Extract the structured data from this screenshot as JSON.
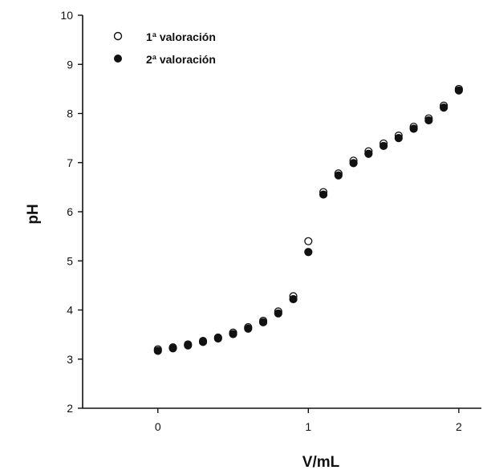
{
  "chart_data": {
    "type": "scatter",
    "title": "",
    "xlabel": "V/mL",
    "ylabel": "pH",
    "xlim": [
      -0.5,
      2.15
    ],
    "ylim": [
      2,
      10
    ],
    "xticks": [
      0,
      1,
      2
    ],
    "yticks": [
      2,
      3,
      4,
      5,
      6,
      7,
      8,
      9,
      10
    ],
    "grid": false,
    "legend": "top-left",
    "series": [
      {
        "name": "1ª valoración",
        "marker": "open-circle",
        "color": "#111111",
        "x": [
          0.0,
          0.1,
          0.2,
          0.3,
          0.4,
          0.5,
          0.6,
          0.7,
          0.8,
          0.9,
          1.0,
          1.1,
          1.2,
          1.3,
          1.4,
          1.5,
          1.6,
          1.7,
          1.8,
          1.9,
          2.0
        ],
        "y": [
          3.2,
          3.24,
          3.3,
          3.37,
          3.44,
          3.54,
          3.65,
          3.78,
          3.97,
          4.28,
          5.4,
          6.4,
          6.78,
          7.04,
          7.23,
          7.39,
          7.55,
          7.73,
          7.9,
          8.16,
          8.5
        ]
      },
      {
        "name": "2ª valoración",
        "marker": "filled-circle",
        "color": "#111111",
        "x": [
          0.0,
          0.1,
          0.2,
          0.3,
          0.4,
          0.5,
          0.6,
          0.7,
          0.8,
          0.9,
          1.0,
          1.1,
          1.2,
          1.3,
          1.4,
          1.5,
          1.6,
          1.7,
          1.8,
          1.9,
          2.0
        ],
        "y": [
          3.17,
          3.22,
          3.28,
          3.35,
          3.42,
          3.51,
          3.62,
          3.75,
          3.93,
          4.22,
          5.18,
          6.35,
          6.74,
          6.99,
          7.18,
          7.34,
          7.5,
          7.69,
          7.86,
          8.12,
          8.47
        ]
      }
    ]
  }
}
